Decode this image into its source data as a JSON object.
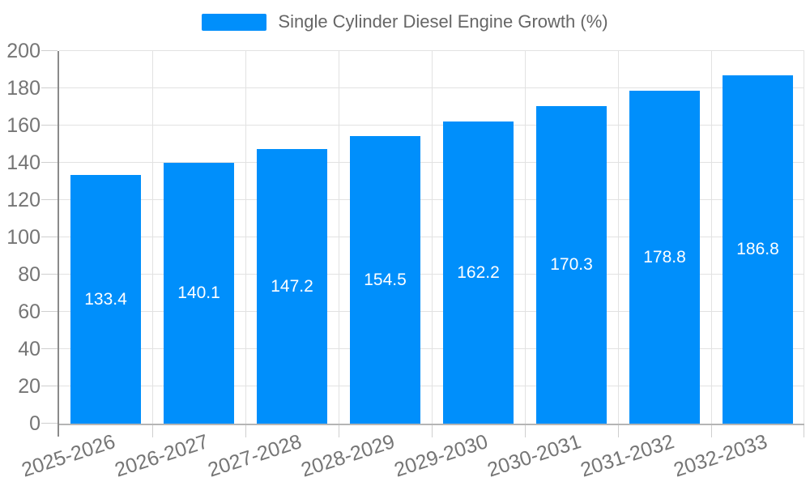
{
  "chart_data": {
    "type": "bar",
    "title": "Single Cylinder Diesel Engine Growth (%)",
    "legend": {
      "position": "top",
      "label": "Single Cylinder Diesel Engine Growth (%)"
    },
    "categories": [
      "2025-2026",
      "2026-2027",
      "2027-2028",
      "2028-2029",
      "2029-2030",
      "2030-2031",
      "2031-2032",
      "2032-2033"
    ],
    "values": [
      133.4,
      140.1,
      147.2,
      154.5,
      162.2,
      170.3,
      178.8,
      186.8
    ],
    "value_label_decimals": 1,
    "xlabel": "",
    "ylabel": "",
    "ylim": [
      0,
      200
    ],
    "y_ticks": [
      0,
      20,
      40,
      60,
      80,
      100,
      120,
      140,
      160,
      180,
      200
    ],
    "grid": true,
    "colors": {
      "bar": "#008ffb",
      "value_label": "#ffffff",
      "axis_text": "#757575",
      "legend_text": "#666666",
      "grid_line": "#e2e2e2",
      "tick_line": "#cfcfcf",
      "y_axis_line": "#8a8a8a",
      "x_axis_line": "#b5b5b5",
      "background": "#ffffff"
    }
  }
}
